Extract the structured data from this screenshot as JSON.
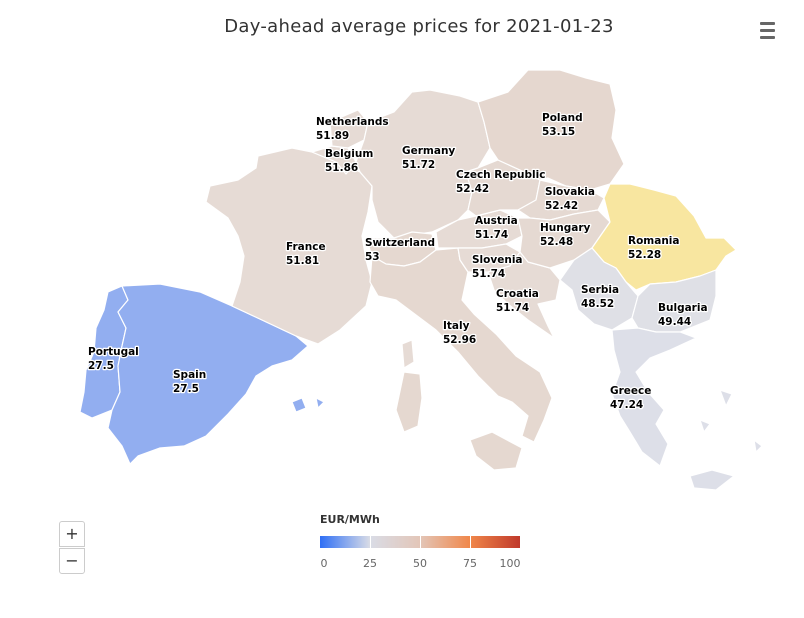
{
  "title": "Day-ahead average prices for 2021-01-23",
  "menu_icon": "hamburger-menu-icon",
  "zoom": {
    "in_label": "+",
    "out_label": "−"
  },
  "legend": {
    "title": "EUR/MWh",
    "min": 0,
    "max": 100,
    "ticks": [
      "0",
      "25",
      "50",
      "75",
      "100"
    ],
    "colors": [
      "#2f6ff5",
      "#d9dce6",
      "#e3c6b8",
      "#f0874a",
      "#c0392b"
    ]
  },
  "countries": [
    {
      "name": "Portugal",
      "price": "27.5",
      "color": "#92aef0"
    },
    {
      "name": "Spain",
      "price": "27.5",
      "color": "#92aef0"
    },
    {
      "name": "France",
      "price": "51.81",
      "color": "#e6dbd5"
    },
    {
      "name": "Belgium",
      "price": "51.86",
      "color": "#e6dbd5"
    },
    {
      "name": "Netherlands",
      "price": "51.89",
      "color": "#e6dbd5"
    },
    {
      "name": "Germany",
      "price": "51.72",
      "color": "#e6dbd5"
    },
    {
      "name": "Switzerland",
      "price": "53",
      "color": "#e5d8d0"
    },
    {
      "name": "Italy",
      "price": "52.96",
      "color": "#e5d8d0"
    },
    {
      "name": "Austria",
      "price": "51.74",
      "color": "#e6dbd5"
    },
    {
      "name": "Slovenia",
      "price": "51.74",
      "color": "#e6dbd5"
    },
    {
      "name": "Croatia",
      "price": "51.74",
      "color": "#e6dbd5"
    },
    {
      "name": "Czech Republic",
      "price": "52.42",
      "color": "#e5d9d2"
    },
    {
      "name": "Poland",
      "price": "53.15",
      "color": "#e5d7cf"
    },
    {
      "name": "Slovakia",
      "price": "52.42",
      "color": "#e5d9d2"
    },
    {
      "name": "Hungary",
      "price": "52.48",
      "color": "#e5d9d2"
    },
    {
      "name": "Romania",
      "price": "52.28",
      "color": "#f8e6a0"
    },
    {
      "name": "Serbia",
      "price": "48.52",
      "color": "#dfe0e6"
    },
    {
      "name": "Bulgaria",
      "price": "49.44",
      "color": "#dfe0e6"
    },
    {
      "name": "Greece",
      "price": "47.24",
      "color": "#dddfe8"
    }
  ]
}
